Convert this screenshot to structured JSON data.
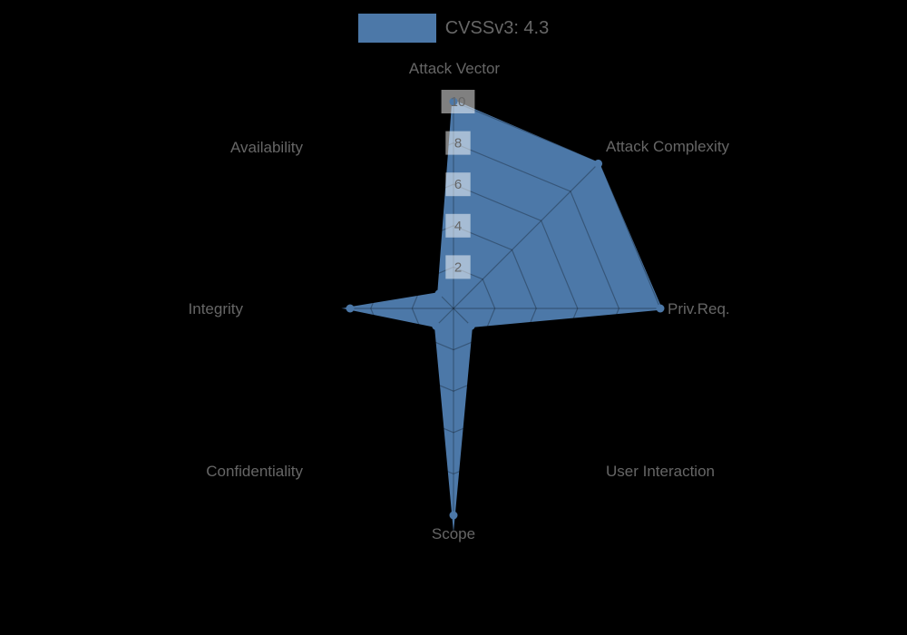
{
  "legend": {
    "label": "CVSSv3: 4.3",
    "swatch_color": "#4c78a8"
  },
  "chart_data": {
    "type": "radar",
    "title": "CVSSv3: 4.3",
    "categories": [
      "Attack Vector",
      "Attack Complexity",
      "Priv.Req.",
      "User Interaction",
      "Scope",
      "Confidentiality",
      "Integrity",
      "Availability"
    ],
    "series": [
      {
        "name": "CVSSv3: 4.3",
        "values": [
          10,
          9.9,
          10,
          1.2,
          10,
          1.2,
          5,
          1.0
        ]
      }
    ],
    "rlim": [
      0,
      10
    ],
    "tick_labels": [
      "2",
      "4",
      "6",
      "8",
      "10"
    ],
    "tick_values": [
      2,
      4,
      6,
      8,
      10
    ],
    "grid": true,
    "legend_position": "top",
    "colors": {
      "series_fill": "#4c78a8",
      "series_border": "#4c78a8",
      "point": "#4c78a8",
      "axis_label": "#666666",
      "tick_text": "#666666",
      "tick_backdrop": "rgba(255,255,255,0.5)",
      "grid_line": "rgba(0,0,0,0.28)",
      "background": "#000000"
    }
  }
}
